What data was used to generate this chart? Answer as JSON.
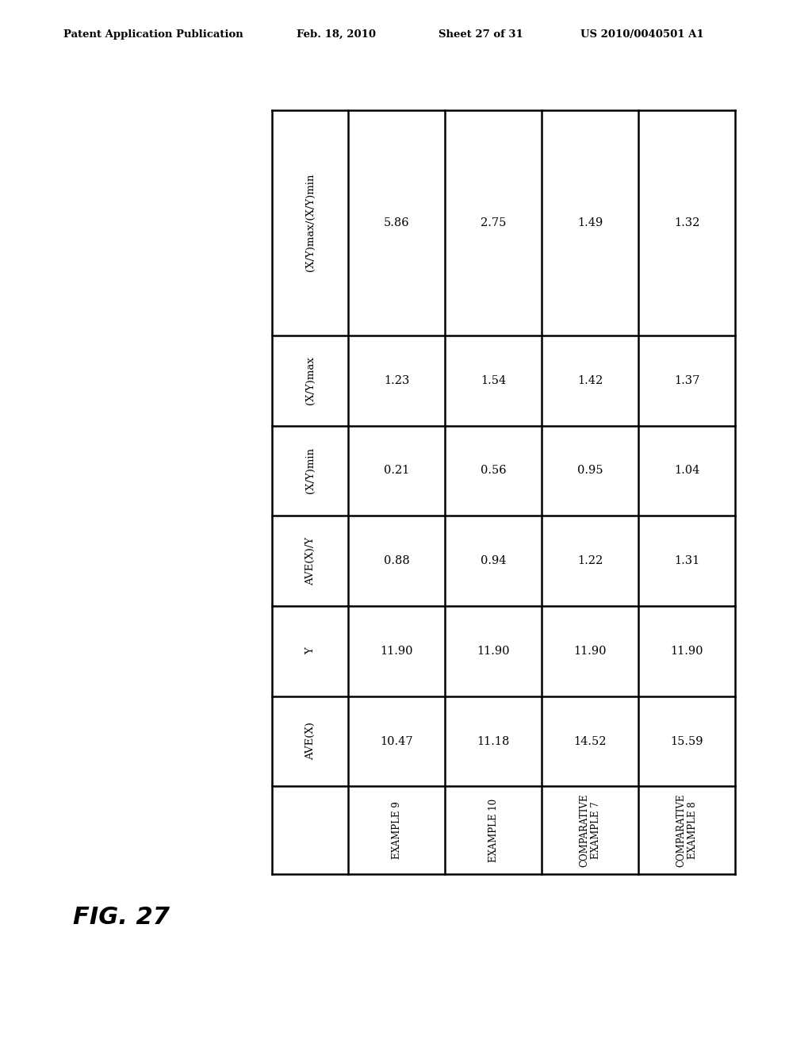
{
  "header_text": "Patent Application Publication",
  "header_date": "Feb. 18, 2010",
  "header_sheet": "Sheet 27 of 31",
  "header_patent": "US 2010/0040501 A1",
  "figure_label": "FIG. 27",
  "row_headers": [
    "AVE(X)",
    "Y",
    "AVE(X)/Y",
    "(X/Y)min",
    "(X/Y)max",
    "(X/Y)max/(X/Y)min"
  ],
  "col_labels": [
    "EXAMPLE 9",
    "EXAMPLE 10",
    "COMPARATIVE\nEXAMPLE 7",
    "COMPARATIVE\nEXAMPLE 8"
  ],
  "data": [
    [
      "10.47",
      "11.18",
      "14.52",
      "15.59"
    ],
    [
      "11.90",
      "11.90",
      "11.90",
      "11.90"
    ],
    [
      "0.88",
      "0.94",
      "1.22",
      "1.31"
    ],
    [
      "0.21",
      "0.56",
      "0.95",
      "1.04"
    ],
    [
      "1.23",
      "1.54",
      "1.42",
      "1.37"
    ],
    [
      "5.86",
      "2.75",
      "1.49",
      "1.32"
    ]
  ],
  "background_color": "#ffffff",
  "text_color": "#000000",
  "table_line_color": "#000000"
}
